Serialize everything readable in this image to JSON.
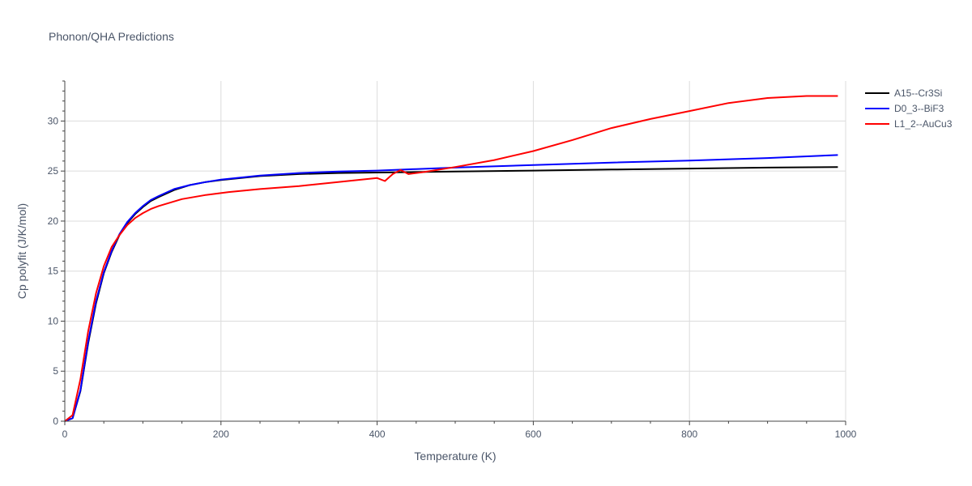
{
  "chart_data": {
    "type": "line",
    "title": "Phonon/QHA Predictions",
    "xlabel": "Temperature (K)",
    "ylabel": "Cp polyfit (J/K/mol)",
    "xlim": [
      0,
      1000
    ],
    "ylim": [
      0,
      34
    ],
    "xticks": [
      0,
      200,
      400,
      600,
      800,
      1000
    ],
    "yticks": [
      0,
      5,
      10,
      15,
      20,
      25,
      30
    ],
    "grid": true,
    "legend_position": "top-right",
    "series": [
      {
        "name": "A15--Cr3Si",
        "color": "#000000",
        "x": [
          0,
          10,
          20,
          30,
          40,
          50,
          60,
          70,
          80,
          90,
          100,
          110,
          120,
          140,
          160,
          180,
          200,
          250,
          300,
          350,
          400,
          450,
          500,
          600,
          700,
          800,
          900,
          990
        ],
        "y": [
          0,
          0.3,
          3.0,
          7.8,
          11.8,
          14.8,
          16.9,
          18.6,
          19.8,
          20.7,
          21.4,
          22.0,
          22.4,
          23.1,
          23.6,
          23.9,
          24.1,
          24.5,
          24.7,
          24.8,
          24.85,
          24.9,
          24.95,
          25.05,
          25.15,
          25.25,
          25.35,
          25.4
        ]
      },
      {
        "name": "D0_3--BiF3",
        "color": "#0000ff",
        "x": [
          0,
          10,
          20,
          30,
          40,
          50,
          60,
          70,
          80,
          90,
          100,
          110,
          120,
          140,
          160,
          180,
          200,
          250,
          300,
          350,
          400,
          450,
          500,
          600,
          700,
          800,
          900,
          990
        ],
        "y": [
          0,
          0.3,
          3.1,
          8.0,
          12.0,
          14.9,
          17.0,
          18.7,
          19.9,
          20.8,
          21.5,
          22.1,
          22.5,
          23.2,
          23.6,
          23.9,
          24.15,
          24.55,
          24.8,
          24.95,
          25.05,
          25.2,
          25.35,
          25.6,
          25.85,
          26.05,
          26.3,
          26.6
        ]
      },
      {
        "name": "L1_2--AuCu3",
        "color": "#ff0000",
        "x": [
          0,
          10,
          20,
          30,
          40,
          50,
          60,
          70,
          80,
          90,
          100,
          110,
          120,
          150,
          180,
          210,
          250,
          300,
          350,
          400,
          410,
          420,
          430,
          440,
          460,
          500,
          550,
          600,
          650,
          700,
          750,
          800,
          850,
          900,
          950,
          990
        ],
        "y": [
          0,
          0.6,
          4.2,
          9.0,
          12.8,
          15.5,
          17.4,
          18.6,
          19.6,
          20.3,
          20.8,
          21.2,
          21.5,
          22.2,
          22.6,
          22.9,
          23.2,
          23.5,
          23.9,
          24.3,
          24.0,
          24.7,
          25.1,
          24.7,
          24.9,
          25.4,
          26.1,
          27.0,
          28.1,
          29.3,
          30.2,
          31.0,
          31.8,
          32.3,
          32.5,
          32.5
        ]
      }
    ]
  }
}
